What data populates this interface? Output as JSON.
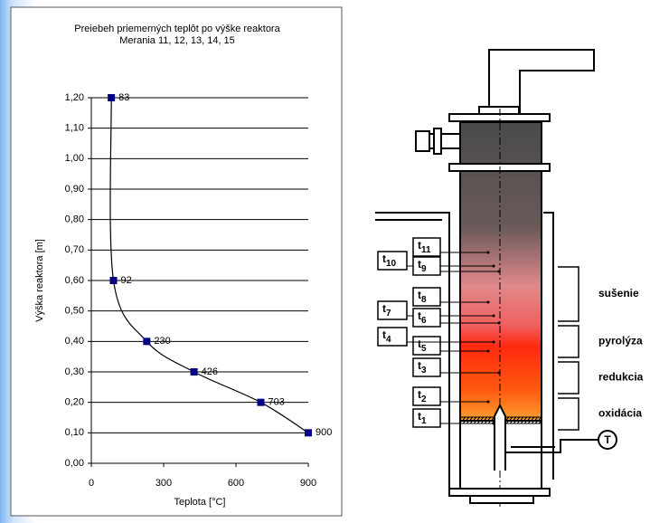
{
  "chart_data": {
    "type": "scatter",
    "title": "Preiebeh priemerných teplôt po výške reaktora",
    "subtitle": "Merania 11, 12, 13, 14, 15",
    "x_label": "Teplota [°C]",
    "y_label": "Výška reaktora [m]",
    "series": [
      {
        "color": "#000080",
        "x": [
          83,
          92,
          230,
          426,
          703,
          900
        ],
        "values": [
          1.2,
          0.6,
          0.4,
          0.3,
          0.2,
          0.1
        ]
      }
    ],
    "xlim": [
      0,
      900
    ],
    "xticks": [
      0,
      300,
      600,
      900
    ],
    "ylim": [
      0,
      1.2
    ],
    "yticks": [
      {
        "value": 0,
        "label": "0,00"
      },
      {
        "value": 0.1,
        "label": "0,10"
      },
      {
        "value": 0.2,
        "label": "0,20"
      },
      {
        "value": 0.3,
        "label": "0,30"
      },
      {
        "value": 0.4,
        "label": "0,40"
      },
      {
        "value": 0.5,
        "label": "0,50"
      },
      {
        "value": 0.6,
        "label": "0,60"
      },
      {
        "value": 0.7,
        "label": "0,70"
      },
      {
        "value": 0.8,
        "label": "0,80"
      },
      {
        "value": 0.9,
        "label": "0,90"
      },
      {
        "value": 1.0,
        "label": "1,00"
      },
      {
        "value": 1.1,
        "label": "1,10"
      },
      {
        "value": 1.2,
        "label": "1,20"
      }
    ],
    "grid": true
  },
  "diagram": {
    "sensors": [
      {
        "base": "t",
        "sub": "11"
      },
      {
        "base": "t",
        "sub": "10"
      },
      {
        "base": "t",
        "sub": "9"
      },
      {
        "base": "t",
        "sub": "8"
      },
      {
        "base": "t",
        "sub": "7"
      },
      {
        "base": "t",
        "sub": "6"
      },
      {
        "base": "t",
        "sub": "5"
      },
      {
        "base": "t",
        "sub": "4"
      },
      {
        "base": "t",
        "sub": "3"
      },
      {
        "base": "t",
        "sub": "2"
      },
      {
        "base": "t",
        "sub": "1"
      }
    ],
    "zones": [
      "sušenie",
      "pyrolýza",
      "redukcia",
      "oxidácia"
    ],
    "thermometer": "T"
  }
}
